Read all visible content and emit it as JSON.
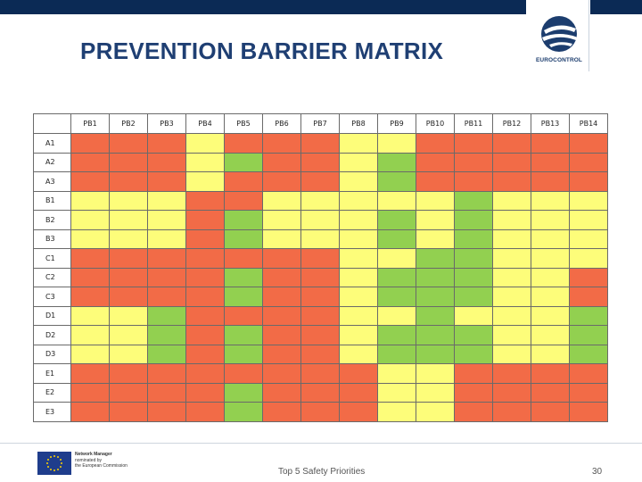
{
  "header": {
    "title": "PREVENTION BARRIER MATRIX",
    "logo_text": "EUROCONTROL",
    "brand_color": "#0b2a55"
  },
  "colors": {
    "R": "#f26b47",
    "Y": "#fdfd7a",
    "G": "#92d050"
  },
  "matrix": {
    "columns": [
      "PB1",
      "PB2",
      "PB3",
      "PB4",
      "PB5",
      "PB6",
      "PB7",
      "PB8",
      "PB9",
      "PB10",
      "PB11",
      "PB12",
      "PB13",
      "PB14"
    ],
    "rows": [
      {
        "label": "A1",
        "cells": [
          "R",
          "R",
          "R",
          "Y",
          "R",
          "R",
          "R",
          "Y",
          "Y",
          "R",
          "R",
          "R",
          "R",
          "R"
        ]
      },
      {
        "label": "A2",
        "cells": [
          "R",
          "R",
          "R",
          "Y",
          "G",
          "R",
          "R",
          "Y",
          "G",
          "R",
          "R",
          "R",
          "R",
          "R"
        ]
      },
      {
        "label": "A3",
        "cells": [
          "R",
          "R",
          "R",
          "Y",
          "R",
          "R",
          "R",
          "Y",
          "G",
          "R",
          "R",
          "R",
          "R",
          "R"
        ]
      },
      {
        "label": "B1",
        "cells": [
          "Y",
          "Y",
          "Y",
          "R",
          "R",
          "Y",
          "Y",
          "Y",
          "Y",
          "Y",
          "G",
          "Y",
          "Y",
          "Y"
        ]
      },
      {
        "label": "B2",
        "cells": [
          "Y",
          "Y",
          "Y",
          "R",
          "G",
          "Y",
          "Y",
          "Y",
          "G",
          "Y",
          "G",
          "Y",
          "Y",
          "Y"
        ]
      },
      {
        "label": "B3",
        "cells": [
          "Y",
          "Y",
          "Y",
          "R",
          "G",
          "Y",
          "Y",
          "Y",
          "G",
          "Y",
          "G",
          "Y",
          "Y",
          "Y"
        ]
      },
      {
        "label": "C1",
        "cells": [
          "R",
          "R",
          "R",
          "R",
          "R",
          "R",
          "R",
          "Y",
          "Y",
          "G",
          "G",
          "Y",
          "Y",
          "Y"
        ]
      },
      {
        "label": "C2",
        "cells": [
          "R",
          "R",
          "R",
          "R",
          "G",
          "R",
          "R",
          "Y",
          "G",
          "G",
          "G",
          "Y",
          "Y",
          "R"
        ]
      },
      {
        "label": "C3",
        "cells": [
          "R",
          "R",
          "R",
          "R",
          "G",
          "R",
          "R",
          "Y",
          "G",
          "G",
          "G",
          "Y",
          "Y",
          "R"
        ]
      },
      {
        "label": "D1",
        "cells": [
          "Y",
          "Y",
          "G",
          "R",
          "R",
          "R",
          "R",
          "Y",
          "Y",
          "G",
          "Y",
          "Y",
          "Y",
          "G"
        ]
      },
      {
        "label": "D2",
        "cells": [
          "Y",
          "Y",
          "G",
          "R",
          "G",
          "R",
          "R",
          "Y",
          "G",
          "G",
          "G",
          "Y",
          "Y",
          "G"
        ]
      },
      {
        "label": "D3",
        "cells": [
          "Y",
          "Y",
          "G",
          "R",
          "G",
          "R",
          "R",
          "Y",
          "G",
          "G",
          "G",
          "Y",
          "Y",
          "G"
        ]
      },
      {
        "label": "E1",
        "cells": [
          "R",
          "R",
          "R",
          "R",
          "R",
          "R",
          "R",
          "R",
          "Y",
          "Y",
          "R",
          "R",
          "R",
          "R"
        ]
      },
      {
        "label": "E2",
        "cells": [
          "R",
          "R",
          "R",
          "R",
          "G",
          "R",
          "R",
          "R",
          "Y",
          "Y",
          "R",
          "R",
          "R",
          "R"
        ]
      },
      {
        "label": "E3",
        "cells": [
          "R",
          "R",
          "R",
          "R",
          "G",
          "R",
          "R",
          "R",
          "Y",
          "Y",
          "R",
          "R",
          "R",
          "R"
        ]
      }
    ]
  },
  "footer": {
    "eu_line1": "Network Manager",
    "eu_line2": "nominated by",
    "eu_line3": "the European Commission",
    "text": "Top 5 Safety Priorities",
    "page_number": "30"
  }
}
